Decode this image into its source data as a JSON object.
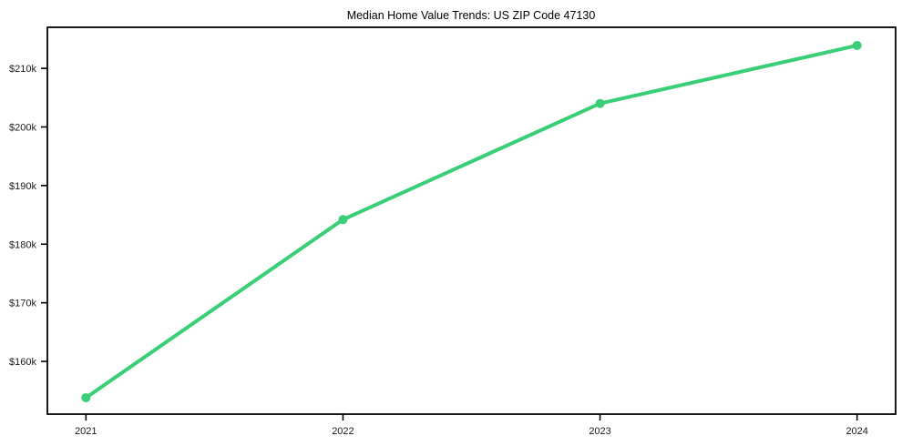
{
  "chart_data": {
    "type": "line",
    "title": "Median Home Value Trends: US ZIP Code 47130",
    "x": [
      2021,
      2022,
      2023,
      2024
    ],
    "x_tick_labels": [
      "2021",
      "2022",
      "2023",
      "2024"
    ],
    "series": [
      {
        "name": "median-home-value",
        "values": [
          153800,
          184200,
          204000,
          213900
        ],
        "color": "#38cf76",
        "marker": "circle",
        "line_width": 4,
        "marker_radius": 5
      }
    ],
    "y_ticks": [
      160000,
      170000,
      180000,
      190000,
      200000,
      210000
    ],
    "y_tick_labels": [
      "$160k",
      "$170k",
      "$180k",
      "$190k",
      "$200k",
      "$210k"
    ],
    "xlabel": "",
    "ylabel": "",
    "xlim": [
      2020.85,
      2024.15
    ],
    "ylim": [
      151000,
      217000
    ],
    "grid": false,
    "legend": "none",
    "axis_color": "#000000",
    "text_color": "#1a1a1a",
    "background": "#ffffff"
  }
}
